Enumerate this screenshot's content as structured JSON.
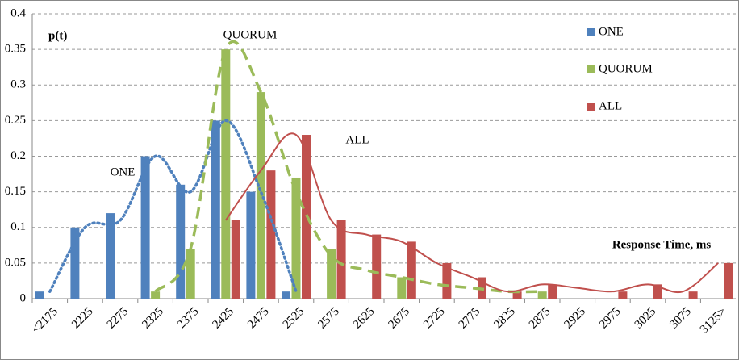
{
  "chart_data": {
    "type": "bar",
    "categories": [
      "<2175",
      "2225",
      "2275",
      "2325",
      "2375",
      "2425",
      "2475",
      "2525",
      "2575",
      "2625",
      "2675",
      "2725",
      "2775",
      "2825",
      "2875",
      "2925",
      "2975",
      "3025",
      "3075",
      "3125>"
    ],
    "series": [
      {
        "name": "ONE",
        "color": "#4f81bd",
        "line_style": "dotted",
        "values": [
          0.01,
          0.1,
          0.12,
          0.2,
          0.16,
          0.25,
          0.15,
          0.01,
          null,
          null,
          null,
          null,
          null,
          null,
          null,
          null,
          null,
          null,
          null,
          null
        ],
        "trend": [
          0.01,
          0.1,
          0.11,
          0.2,
          0.15,
          0.25,
          0.15,
          0.01,
          null,
          null,
          null,
          null,
          null,
          null,
          null,
          null,
          null,
          null,
          null,
          null
        ]
      },
      {
        "name": "QUORUM",
        "color": "#9bbb59",
        "line_style": "dashed",
        "values": [
          null,
          null,
          null,
          0.01,
          0.07,
          0.35,
          0.29,
          0.17,
          0.07,
          null,
          0.03,
          null,
          null,
          null,
          0.01,
          null,
          null,
          null,
          null,
          null
        ],
        "trend": [
          null,
          null,
          null,
          0.01,
          0.07,
          0.35,
          0.29,
          0.15,
          0.06,
          0.04,
          0.03,
          0.02,
          0.015,
          0.01,
          0.01,
          null,
          null,
          null,
          null,
          null
        ]
      },
      {
        "name": "ALL",
        "color": "#c0504d",
        "line_style": "solid",
        "values": [
          null,
          null,
          null,
          null,
          null,
          0.11,
          0.18,
          0.23,
          0.11,
          0.09,
          0.08,
          0.05,
          0.03,
          0.01,
          0.02,
          null,
          0.01,
          0.02,
          0.01,
          0.05
        ],
        "trend": [
          null,
          null,
          null,
          null,
          null,
          0.11,
          0.18,
          0.23,
          0.11,
          0.09,
          0.08,
          0.05,
          0.03,
          0.01,
          0.02,
          0.015,
          0.01,
          0.02,
          0.01,
          0.05
        ]
      }
    ],
    "ylim": [
      0,
      0.4
    ],
    "yticks": [
      0,
      0.05,
      0.1,
      0.15,
      0.2,
      0.25,
      0.3,
      0.35,
      0.4
    ],
    "grid": true,
    "legend": "top-right",
    "annotations": [
      {
        "text": "p(t)"
      },
      {
        "text": "QUORUM"
      },
      {
        "text": "ONE"
      },
      {
        "text": "ALL"
      },
      {
        "text": "Response Time, ms"
      }
    ]
  }
}
